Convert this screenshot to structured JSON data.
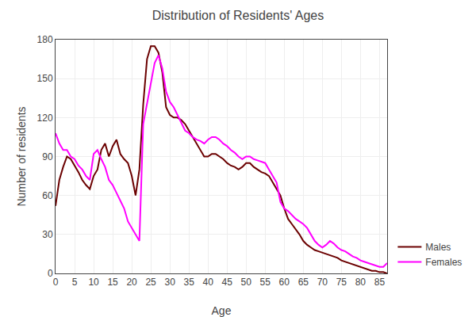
{
  "chart_data": {
    "type": "line",
    "title": "Distribution of Residents' Ages",
    "xlabel": "Age",
    "ylabel": "Number of residents",
    "x": [
      0,
      1,
      2,
      3,
      4,
      5,
      6,
      7,
      8,
      9,
      10,
      11,
      12,
      13,
      14,
      15,
      16,
      17,
      18,
      19,
      20,
      21,
      22,
      23,
      24,
      25,
      26,
      27,
      28,
      29,
      30,
      31,
      32,
      33,
      34,
      35,
      36,
      37,
      38,
      39,
      40,
      41,
      42,
      43,
      44,
      45,
      46,
      47,
      48,
      49,
      50,
      51,
      52,
      53,
      54,
      55,
      56,
      57,
      58,
      59,
      60,
      61,
      62,
      63,
      64,
      65,
      66,
      67,
      68,
      69,
      70,
      71,
      72,
      73,
      74,
      75,
      76,
      77,
      78,
      79,
      80,
      81,
      82,
      83,
      84,
      85,
      86,
      87
    ],
    "series": [
      {
        "name": "Males",
        "color": "#6B0000",
        "values": [
          52,
          72,
          82,
          90,
          88,
          83,
          78,
          72,
          68,
          65,
          75,
          80,
          95,
          100,
          90,
          98,
          103,
          92,
          88,
          85,
          75,
          60,
          80,
          130,
          165,
          175,
          175,
          170,
          155,
          128,
          122,
          120,
          120,
          118,
          115,
          110,
          105,
          100,
          95,
          90,
          90,
          92,
          92,
          90,
          88,
          85,
          83,
          82,
          80,
          82,
          85,
          85,
          82,
          80,
          78,
          77,
          75,
          70,
          65,
          60,
          50,
          42,
          38,
          34,
          30,
          25,
          22,
          20,
          18,
          17,
          16,
          15,
          14,
          13,
          12,
          10,
          9,
          8,
          7,
          6,
          5,
          4,
          3,
          2,
          2,
          1,
          1,
          0
        ]
      },
      {
        "name": "Females",
        "color": "#FF00FF",
        "values": [
          108,
          100,
          95,
          95,
          90,
          88,
          83,
          80,
          75,
          72,
          92,
          95,
          88,
          82,
          72,
          68,
          62,
          56,
          50,
          40,
          35,
          30,
          25,
          115,
          130,
          145,
          162,
          168,
          158,
          140,
          132,
          128,
          122,
          115,
          110,
          108,
          105,
          103,
          102,
          100,
          103,
          105,
          105,
          103,
          100,
          98,
          95,
          93,
          90,
          88,
          90,
          90,
          88,
          87,
          86,
          85,
          80,
          75,
          70,
          55,
          50,
          48,
          45,
          42,
          40,
          38,
          35,
          30,
          25,
          22,
          20,
          22,
          25,
          23,
          20,
          18,
          17,
          15,
          13,
          12,
          10,
          9,
          8,
          7,
          6,
          5,
          5,
          8
        ]
      }
    ],
    "xlim": [
      0,
      87
    ],
    "ylim": [
      0,
      180
    ],
    "xticks": [
      0,
      5,
      10,
      15,
      20,
      25,
      30,
      35,
      40,
      45,
      50,
      55,
      60,
      65,
      70,
      75,
      80,
      85
    ],
    "yticks": [
      0,
      30,
      60,
      90,
      120,
      150,
      180
    ],
    "grid": true,
    "legend": "lower right"
  }
}
